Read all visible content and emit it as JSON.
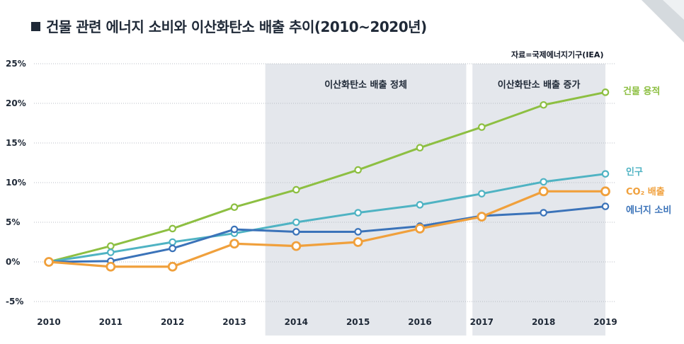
{
  "title": "건물 관련 에너지 소비와 이산화탄소 배출 추이(2010~2020년)",
  "source": "자료=국제에너지기구(IEA)",
  "bands": [
    {
      "label": "이산화탄소 배출 정체",
      "from": 2013.5,
      "to": 2016.75
    },
    {
      "label": "이산화탄소 배출 증가",
      "from": 2016.85,
      "to": 2019
    }
  ],
  "colors": {
    "building": "#8dbf42",
    "population": "#4fb3c3",
    "co2": "#f0a03c",
    "energy": "#3b73b9",
    "band": "#e4e7ec",
    "grid": "#b8bcc4"
  },
  "chart_data": {
    "type": "line",
    "x": [
      2010,
      2011,
      2012,
      2013,
      2014,
      2015,
      2016,
      2017,
      2018,
      2019
    ],
    "ylim": [
      -5,
      25
    ],
    "yticks": [
      25,
      20,
      15,
      10,
      5,
      0,
      -5
    ],
    "ytick_labels": [
      "25%",
      "20%",
      "15%",
      "10%",
      "5%",
      "0%",
      "-5%"
    ],
    "xtick_labels": [
      "2010",
      "2011",
      "2012",
      "2013",
      "2014",
      "2015",
      "2016",
      "2017",
      "2018",
      "2019"
    ],
    "series": [
      {
        "key": "building",
        "name": "건물 용적",
        "values": [
          0,
          2.0,
          4.2,
          6.9,
          9.1,
          11.6,
          14.4,
          17.0,
          19.8,
          21.4
        ]
      },
      {
        "key": "population",
        "name": "인구",
        "values": [
          0,
          1.2,
          2.5,
          3.6,
          5.0,
          6.2,
          7.2,
          8.6,
          10.1,
          11.1
        ]
      },
      {
        "key": "co2",
        "name": "CO₂ 배출",
        "values": [
          0,
          -0.6,
          -0.6,
          2.3,
          2.0,
          2.5,
          4.2,
          5.7,
          8.9,
          8.9
        ]
      },
      {
        "key": "energy",
        "name": "에너지 소비",
        "values": [
          0,
          0.1,
          1.7,
          4.1,
          3.8,
          3.8,
          4.5,
          5.8,
          6.2,
          7.0
        ]
      }
    ]
  }
}
